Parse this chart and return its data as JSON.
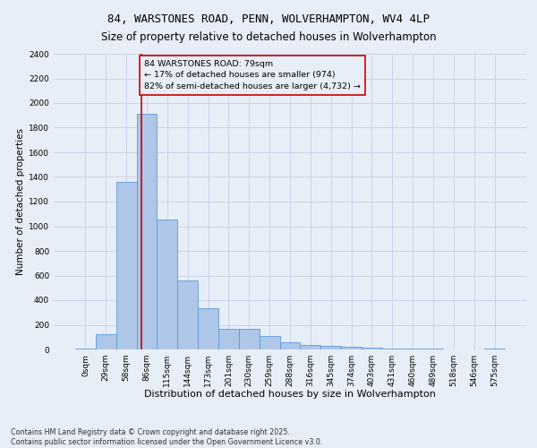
{
  "title": "84, WARSTONES ROAD, PENN, WOLVERHAMPTON, WV4 4LP",
  "subtitle": "Size of property relative to detached houses in Wolverhampton",
  "xlabel": "Distribution of detached houses by size in Wolverhampton",
  "ylabel": "Number of detached properties",
  "footnote": "Contains HM Land Registry data © Crown copyright and database right 2025.\nContains public sector information licensed under the Open Government Licence v3.0.",
  "bar_labels": [
    "0sqm",
    "29sqm",
    "58sqm",
    "86sqm",
    "115sqm",
    "144sqm",
    "173sqm",
    "201sqm",
    "230sqm",
    "259sqm",
    "288sqm",
    "316sqm",
    "345sqm",
    "374sqm",
    "403sqm",
    "431sqm",
    "460sqm",
    "489sqm",
    "518sqm",
    "546sqm",
    "575sqm"
  ],
  "bar_values": [
    10,
    125,
    1360,
    1910,
    1055,
    560,
    335,
    170,
    165,
    110,
    60,
    38,
    30,
    25,
    15,
    10,
    5,
    5,
    3,
    2,
    10
  ],
  "bar_color": "#aec6e8",
  "bar_edge_color": "#5b9bd5",
  "annotation_box_text": "84 WARSTONES ROAD: 79sqm\n← 17% of detached houses are smaller (974)\n82% of semi-detached houses are larger (4,732) →",
  "annotation_box_color": "#cc0000",
  "vline_color": "#cc0000",
  "grid_color": "#c8d4e8",
  "background_color": "#e8eef8",
  "ylim": [
    0,
    2400
  ],
  "yticks": [
    0,
    200,
    400,
    600,
    800,
    1000,
    1200,
    1400,
    1600,
    1800,
    2000,
    2200,
    2400
  ],
  "title_fontsize": 9,
  "subtitle_fontsize": 8.5,
  "xlabel_fontsize": 8,
  "ylabel_fontsize": 7.5,
  "tick_fontsize": 6.5,
  "annotation_fontsize": 6.8,
  "footnote_fontsize": 5.8
}
